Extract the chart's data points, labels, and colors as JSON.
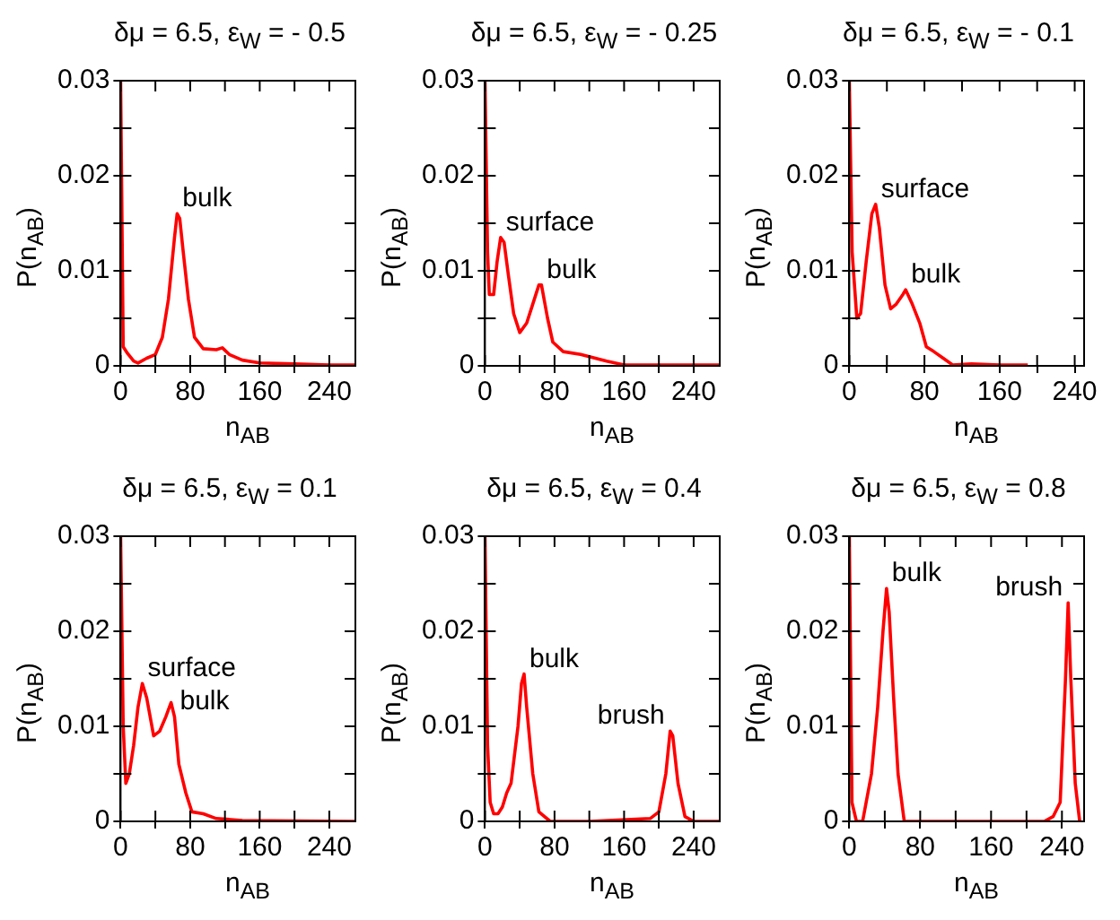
{
  "chart_data": [
    {
      "type": "line",
      "title": "δμ = 6.5, ε$_{W}$ = - 0.5",
      "xlabel": "n$_{AB}$",
      "ylabel": "P(n$_{AB}$)",
      "xlim": [
        0,
        270
      ],
      "ylim": [
        0,
        0.03
      ],
      "xticks": [
        0,
        {
          "value": 40,
          "label": null
        },
        80,
        {
          "value": 120,
          "label": null
        },
        160,
        {
          "value": 200,
          "label": null
        },
        240
      ],
      "yticks": [
        0,
        {
          "value": 0.005,
          "label": null
        },
        0.01,
        {
          "value": 0.015,
          "label": null
        },
        0.02,
        {
          "value": 0.025,
          "label": null
        },
        0.03
      ],
      "grid": false,
      "legend": false,
      "marker": "none",
      "line_style": "solid",
      "x": [
        0,
        3,
        8,
        15,
        20,
        30,
        40,
        48,
        55,
        62,
        65,
        68,
        72,
        78,
        85,
        95,
        110,
        117,
        125,
        140,
        160,
        200,
        240,
        270
      ],
      "series": [
        {
          "color": "#ff0000",
          "values": [
            0.03,
            0.002,
            0.0013,
            0.0005,
            0.0003,
            0.0008,
            0.0012,
            0.003,
            0.007,
            0.0135,
            0.016,
            0.0155,
            0.012,
            0.007,
            0.003,
            0.0018,
            0.0017,
            0.0019,
            0.0012,
            0.0006,
            0.0003,
            0.0002,
            0.0001,
            0.0001
          ]
        }
      ],
      "annotations": [
        {
          "text": "bulk",
          "x": 65,
          "y": 0.016
        }
      ]
    },
    {
      "type": "line",
      "title": "δμ = 6.5, ε$_{W}$ = - 0.25",
      "xlabel": "n$_{AB}$",
      "ylabel": "P(n$_{AB}$)",
      "xlim": [
        0,
        270
      ],
      "ylim": [
        0,
        0.03
      ],
      "xticks": [
        0,
        {
          "value": 40,
          "label": null
        },
        80,
        {
          "value": 120,
          "label": null
        },
        160,
        {
          "value": 200,
          "label": null
        },
        240
      ],
      "yticks": [
        0,
        {
          "value": 0.005,
          "label": null
        },
        0.01,
        {
          "value": 0.015,
          "label": null
        },
        0.02,
        {
          "value": 0.025,
          "label": null
        },
        0.03
      ],
      "grid": false,
      "legend": false,
      "marker": "none",
      "line_style": "solid",
      "x": [
        0,
        3,
        5,
        10,
        14,
        18,
        22,
        27,
        33,
        40,
        48,
        55,
        62,
        65,
        72,
        78,
        90,
        110,
        140,
        160,
        200,
        270
      ],
      "series": [
        {
          "color": "#ff0000",
          "values": [
            0.03,
            0.012,
            0.0075,
            0.0075,
            0.011,
            0.0135,
            0.013,
            0.0095,
            0.0055,
            0.0035,
            0.0045,
            0.0065,
            0.0085,
            0.0085,
            0.005,
            0.0025,
            0.0015,
            0.0012,
            0.0005,
            0.0001,
            0.0001,
            0.0001
          ]
        }
      ],
      "annotations": [
        {
          "text": "surface",
          "x": 18,
          "y": 0.0135
        },
        {
          "text": "bulk",
          "x": 65,
          "y": 0.0085
        }
      ]
    },
    {
      "type": "line",
      "title": "δμ = 6.5, ε$_{W}$ = - 0.1",
      "xlabel": "n$_{AB}$",
      "ylabel": "P(n$_{AB}$)",
      "xlim": [
        0,
        250
      ],
      "ylim": [
        0,
        0.03
      ],
      "xticks": [
        0,
        {
          "value": 40,
          "label": null
        },
        80,
        {
          "value": 120,
          "label": null
        },
        160,
        {
          "value": 200,
          "label": null
        },
        240
      ],
      "yticks": [
        0,
        {
          "value": 0.005,
          "label": null
        },
        0.01,
        {
          "value": 0.015,
          "label": null
        },
        0.02,
        {
          "value": 0.025,
          "label": null
        },
        0.03
      ],
      "grid": false,
      "legend": false,
      "marker": "none",
      "line_style": "solid",
      "x": [
        0,
        3,
        8,
        12,
        18,
        24,
        28,
        32,
        38,
        44,
        50,
        57,
        60,
        67,
        75,
        82,
        90,
        100,
        110,
        130,
        160,
        190
      ],
      "series": [
        {
          "color": "#ff0000",
          "values": [
            0.03,
            0.012,
            0.005,
            0.0055,
            0.011,
            0.016,
            0.017,
            0.0145,
            0.0085,
            0.006,
            0.0065,
            0.0075,
            0.008,
            0.0065,
            0.0045,
            0.002,
            0.0015,
            0.0008,
            0.0001,
            0.0002,
            0.0001,
            0.0001
          ]
        }
      ],
      "annotations": [
        {
          "text": "surface",
          "x": 28,
          "y": 0.017
        },
        {
          "text": "bulk",
          "x": 60,
          "y": 0.008
        }
      ]
    },
    {
      "type": "line",
      "title": "δμ = 6.5, ε$_{W}$ = 0.1",
      "xlabel": "n$_{AB}$",
      "ylabel": "P(n$_{AB}$)",
      "xlim": [
        0,
        270
      ],
      "ylim": [
        0,
        0.03
      ],
      "xticks": [
        0,
        {
          "value": 40,
          "label": null
        },
        80,
        {
          "value": 120,
          "label": null
        },
        160,
        {
          "value": 200,
          "label": null
        },
        240
      ],
      "yticks": [
        0,
        {
          "value": 0.005,
          "label": null
        },
        0.01,
        {
          "value": 0.015,
          "label": null
        },
        0.02,
        {
          "value": 0.025,
          "label": null
        },
        0.03
      ],
      "grid": false,
      "legend": false,
      "marker": "none",
      "line_style": "solid",
      "x": [
        0,
        3,
        6,
        10,
        15,
        20,
        25,
        30,
        38,
        45,
        52,
        58,
        62,
        67,
        75,
        82,
        95,
        110,
        140,
        270
      ],
      "series": [
        {
          "color": "#ff0000",
          "values": [
            0.03,
            0.01,
            0.004,
            0.005,
            0.008,
            0.012,
            0.0145,
            0.013,
            0.009,
            0.0095,
            0.011,
            0.0125,
            0.011,
            0.006,
            0.003,
            0.001,
            0.0008,
            0.0003,
            0.0001,
            0
          ]
        }
      ],
      "annotations": [
        {
          "text": "surface",
          "x": 25,
          "y": 0.0145
        },
        {
          "text": "bulk",
          "x": 62,
          "y": 0.011
        }
      ]
    },
    {
      "type": "line",
      "title": "δμ = 6.5, ε$_{W}$ = 0.4",
      "xlabel": "n$_{AB}$",
      "ylabel": "P(n$_{AB}$)",
      "xlim": [
        0,
        270
      ],
      "ylim": [
        0,
        0.03
      ],
      "xticks": [
        0,
        {
          "value": 40,
          "label": null
        },
        80,
        {
          "value": 120,
          "label": null
        },
        160,
        {
          "value": 200,
          "label": null
        },
        240
      ],
      "yticks": [
        0,
        {
          "value": 0.005,
          "label": null
        },
        0.01,
        {
          "value": 0.015,
          "label": null
        },
        0.02,
        {
          "value": 0.025,
          "label": null
        },
        0.03
      ],
      "grid": false,
      "legend": false,
      "marker": "none",
      "line_style": "solid",
      "x": [
        0,
        3,
        6,
        10,
        15,
        20,
        25,
        30,
        38,
        42,
        45,
        48,
        55,
        62,
        75,
        120,
        190,
        200,
        208,
        213,
        216,
        222,
        230,
        240,
        270
      ],
      "series": [
        {
          "color": "#ff0000",
          "values": [
            0.03,
            0.008,
            0.002,
            0.0008,
            0.0008,
            0.0015,
            0.003,
            0.004,
            0.01,
            0.0145,
            0.0155,
            0.012,
            0.005,
            0.001,
            0,
            0,
            0.0003,
            0.001,
            0.005,
            0.0095,
            0.009,
            0.004,
            0.0005,
            0,
            0
          ]
        }
      ],
      "annotations": [
        {
          "text": "bulk",
          "x": 45,
          "y": 0.0155
        },
        {
          "text": "brush",
          "x": 213,
          "y": 0.0095
        }
      ]
    },
    {
      "type": "line",
      "title": "δμ = 6.5, ε$_{W}$ = 0.8",
      "xlabel": "n$_{AB}$",
      "ylabel": "P(n$_{AB}$)",
      "xlim": [
        0,
        265
      ],
      "ylim": [
        0,
        0.03
      ],
      "xticks": [
        0,
        {
          "value": 40,
          "label": null
        },
        80,
        {
          "value": 120,
          "label": null
        },
        160,
        {
          "value": 200,
          "label": null
        },
        240
      ],
      "yticks": [
        0,
        {
          "value": 0.005,
          "label": null
        },
        0.01,
        {
          "value": 0.015,
          "label": null
        },
        0.02,
        {
          "value": 0.025,
          "label": null
        },
        0.03
      ],
      "grid": false,
      "legend": false,
      "marker": "none",
      "line_style": "solid",
      "x": [
        0,
        3,
        8,
        15,
        25,
        32,
        38,
        42,
        45,
        50,
        55,
        62,
        100,
        220,
        230,
        238,
        244,
        247,
        250,
        255,
        260
      ],
      "series": [
        {
          "color": "#ff0000",
          "values": [
            0.03,
            0.002,
            0,
            0,
            0.005,
            0.012,
            0.02,
            0.0245,
            0.022,
            0.013,
            0.005,
            0,
            0,
            0,
            0.0005,
            0.002,
            0.015,
            0.023,
            0.015,
            0.004,
            0
          ]
        }
      ],
      "annotations": [
        {
          "text": "bulk",
          "x": 42,
          "y": 0.0245
        },
        {
          "text": "brush",
          "x": 247,
          "y": 0.023
        }
      ]
    }
  ]
}
